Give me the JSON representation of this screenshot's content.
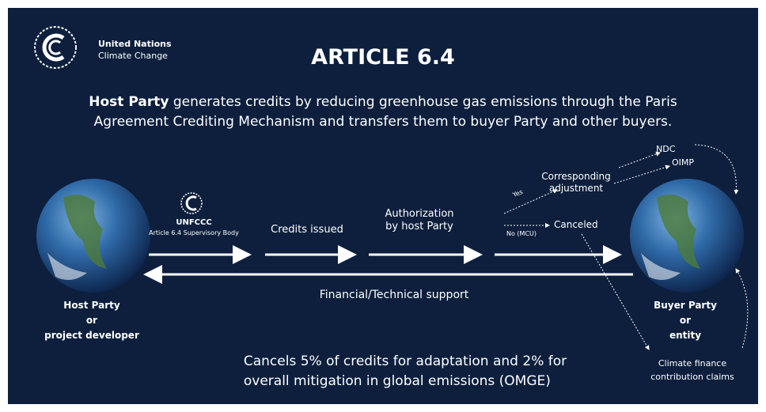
{
  "logo": {
    "line1": "United Nations",
    "line2": "Climate Change"
  },
  "title": "ARTICLE 6.4",
  "intro": {
    "bold": "Host Party",
    "line1": "generates credits by reducing greenhouse gas emissions through the Paris",
    "line2": "Agreement Crediting Mechanism and transfers them to buyer Party and other buyers."
  },
  "body": {
    "name": "UNFCCC",
    "subtitle": "Article 6.4 Supervisory Body"
  },
  "steps": {
    "issued": "Credits issued",
    "authorization": [
      "Authorization",
      "by host Party"
    ],
    "adjustment": [
      "Corresponding",
      "adjustment"
    ],
    "yes": "Yes",
    "no": "No (MCU)",
    "canceled": "Canceled",
    "ndc": "NDC",
    "oimp": "OIMP"
  },
  "support": "Financial/Technical support",
  "host": [
    "Host Party",
    "or",
    "project developer"
  ],
  "buyer": [
    "Buyer Party",
    "or",
    "entity"
  ],
  "climate": [
    "Climate finance",
    "contribution claims"
  ],
  "footer": [
    "Cancels 5% of credits for adaptation and 2% for",
    "overall mitigation in global emissions (OMGE)"
  ]
}
